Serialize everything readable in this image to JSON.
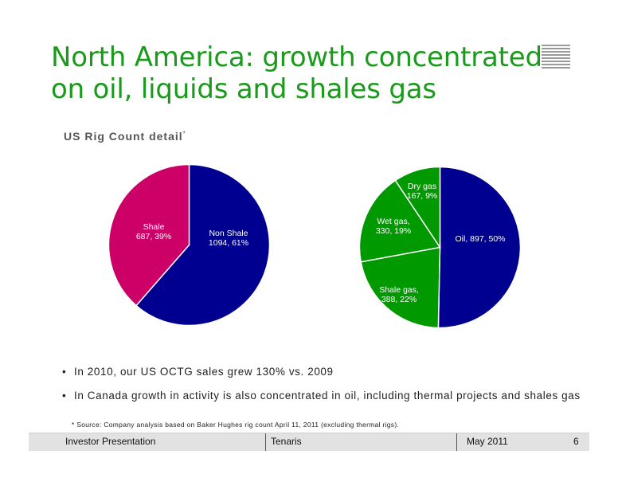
{
  "slide": {
    "title_line1": "North America: growth concentrated",
    "title_line2": "on oil, liquids and shales gas",
    "subtitle": "US Rig Count detail",
    "subtitle_mark": "*",
    "bullets": [
      "In 2010, our US OCTG sales grew 130% vs. 2009",
      "In Canada growth in activity is also concentrated in oil, including thermal projects and shales gas"
    ],
    "footnote": "* Source: Company analysis based on Baker Hughes rig count April 11, 2011 (excluding thermal rigs).",
    "title_color": "#1a9a1a"
  },
  "footer": {
    "left": "Investor  Presentation",
    "center": "Tenaris",
    "date": "May 2011",
    "page": "6"
  },
  "chart_data": [
    {
      "type": "pie",
      "title": "",
      "slices": [
        {
          "name": "Non Shale",
          "value": 1094,
          "percent": 61,
          "label_line1": "Non Shale",
          "label_line2": "1094, 61%",
          "color": "#000090"
        },
        {
          "name": "Shale",
          "value": 687,
          "percent": 39,
          "label_line1": "Shale",
          "label_line2": "687, 39%",
          "color": "#cc0066"
        }
      ]
    },
    {
      "type": "pie",
      "title": "",
      "slices": [
        {
          "name": "Oil",
          "value": 897,
          "percent": 50,
          "label_line1": "Oil, 897, 50%",
          "label_line2": "",
          "color": "#000090"
        },
        {
          "name": "Shale gas",
          "value": 388,
          "percent": 22,
          "label_line1": "Shale gas,",
          "label_line2": "388, 22%",
          "color": "#009900"
        },
        {
          "name": "Wet gas",
          "value": 330,
          "percent": 19,
          "label_line1": "Wet gas,",
          "label_line2": "330, 19%",
          "color": "#009900"
        },
        {
          "name": "Dry gas",
          "value": 167,
          "percent": 9,
          "label_line1": "Dry gas",
          "label_line2": "167, 9%",
          "color": "#009900"
        }
      ]
    }
  ]
}
